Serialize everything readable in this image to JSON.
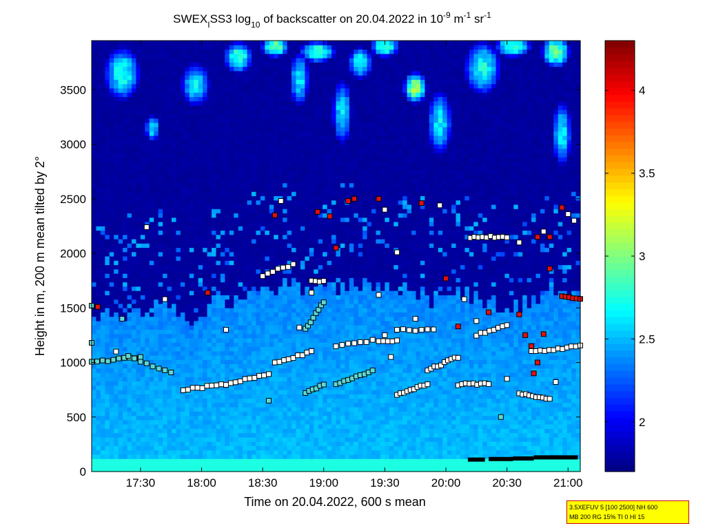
{
  "title": {
    "part1": "SWEX",
    "sub1": "I",
    "part2": "SS3 log",
    "sub2": "10",
    "part3": " of backscatter on 20.04.2022 in 10",
    "sup1": "-9",
    "part4": " m",
    "sup2": "-1",
    "part5": " sr",
    "sup3": "-1"
  },
  "info_box": {
    "line1": "3.5XEFUV 5 [100 2500] NH 600",
    "line2": "MB 200 RG 15% TI 0 HI 15"
  },
  "colors": {
    "background_field": "#0a1f9e",
    "boundary_layer": "#1496e0",
    "surface": "#19e3e8",
    "cloud_high": "#e6f53c",
    "marker_white": "#ffffff",
    "marker_cyan": "#5fd7d2",
    "marker_red": "#e01010"
  },
  "chart_data": {
    "type": "heatmap",
    "xlabel": "Time on 20.04.2022, 600 s mean",
    "ylabel": "Height in m, 200 m mean tilted by 2°",
    "xlim": [
      17.1,
      21.1
    ],
    "ylim": [
      0,
      3950
    ],
    "x_ticks": [
      {
        "value": 17.5,
        "label": "17:30"
      },
      {
        "value": 18.0,
        "label": "18:00"
      },
      {
        "value": 18.5,
        "label": "18:30"
      },
      {
        "value": 19.0,
        "label": "19:00"
      },
      {
        "value": 19.5,
        "label": "19:30"
      },
      {
        "value": 20.0,
        "label": "20:00"
      },
      {
        "value": 20.5,
        "label": "20:30"
      },
      {
        "value": 21.0,
        "label": "21:00"
      }
    ],
    "y_ticks": [
      {
        "value": 0,
        "label": "0"
      },
      {
        "value": 500,
        "label": "500"
      },
      {
        "value": 1000,
        "label": "1000"
      },
      {
        "value": 1500,
        "label": "1500"
      },
      {
        "value": 2000,
        "label": "2000"
      },
      {
        "value": 2500,
        "label": "2500"
      },
      {
        "value": 3000,
        "label": "3000"
      },
      {
        "value": 3500,
        "label": "3500"
      }
    ],
    "colorbar": {
      "range": [
        1.7,
        4.3
      ],
      "ticks": [
        {
          "value": 2.0,
          "label": "2"
        },
        {
          "value": 2.5,
          "label": "2.5"
        },
        {
          "value": 3.0,
          "label": "3"
        },
        {
          "value": 3.5,
          "label": "3.5"
        },
        {
          "value": 4.0,
          "label": "4"
        }
      ]
    },
    "layer_top_m": [
      [
        17.1,
        1500
      ],
      [
        17.3,
        1400
      ],
      [
        17.5,
        1450
      ],
      [
        17.7,
        1550
      ],
      [
        17.9,
        1300
      ],
      [
        18.1,
        1600
      ],
      [
        18.3,
        1550
      ],
      [
        18.5,
        1650
      ],
      [
        18.7,
        1700
      ],
      [
        18.9,
        1700
      ],
      [
        19.1,
        1650
      ],
      [
        19.3,
        1750
      ],
      [
        19.5,
        1650
      ],
      [
        19.7,
        1700
      ],
      [
        19.9,
        1550
      ],
      [
        20.1,
        1650
      ],
      [
        20.3,
        1600
      ],
      [
        20.5,
        1500
      ],
      [
        20.7,
        1550
      ],
      [
        20.9,
        1650
      ],
      [
        21.1,
        1600
      ]
    ],
    "cloud_patches": [
      {
        "t": 17.35,
        "h": 3650,
        "rt": 0.15,
        "rh": 250,
        "v": 2.9
      },
      {
        "t": 17.6,
        "h": 3150,
        "rt": 0.06,
        "rh": 120,
        "v": 2.8
      },
      {
        "t": 17.95,
        "h": 3550,
        "rt": 0.12,
        "rh": 200,
        "v": 2.8
      },
      {
        "t": 18.3,
        "h": 3800,
        "rt": 0.12,
        "rh": 150,
        "v": 3.0
      },
      {
        "t": 18.6,
        "h": 3900,
        "rt": 0.12,
        "rh": 100,
        "v": 3.2
      },
      {
        "t": 18.8,
        "h": 3600,
        "rt": 0.08,
        "rh": 250,
        "v": 2.8
      },
      {
        "t": 18.95,
        "h": 3850,
        "rt": 0.15,
        "rh": 100,
        "v": 3.1
      },
      {
        "t": 19.15,
        "h": 3300,
        "rt": 0.08,
        "rh": 300,
        "v": 2.8
      },
      {
        "t": 19.3,
        "h": 3750,
        "rt": 0.1,
        "rh": 150,
        "v": 2.9
      },
      {
        "t": 19.5,
        "h": 3900,
        "rt": 0.12,
        "rh": 100,
        "v": 3.1
      },
      {
        "t": 19.75,
        "h": 3520,
        "rt": 0.1,
        "rh": 150,
        "v": 3.3
      },
      {
        "t": 19.95,
        "h": 3200,
        "rt": 0.1,
        "rh": 300,
        "v": 2.8
      },
      {
        "t": 20.3,
        "h": 3700,
        "rt": 0.15,
        "rh": 250,
        "v": 2.9
      },
      {
        "t": 20.55,
        "h": 3900,
        "rt": 0.15,
        "rh": 100,
        "v": 3.1
      },
      {
        "t": 20.9,
        "h": 3850,
        "rt": 0.12,
        "rh": 150,
        "v": 3.2
      },
      {
        "t": 20.95,
        "h": 3100,
        "rt": 0.08,
        "rh": 300,
        "v": 2.8
      }
    ],
    "marker_traces": [
      {
        "t0": 17.1,
        "h0": 1000,
        "t1": 17.5,
        "h1": 1050,
        "n": 10,
        "color": "cyan"
      },
      {
        "t0": 17.4,
        "h0": 1050,
        "t1": 17.75,
        "h1": 900,
        "n": 8,
        "color": "cyan"
      },
      {
        "t0": 17.85,
        "h0": 750,
        "t1": 18.2,
        "h1": 800,
        "n": 10,
        "color": "white"
      },
      {
        "t0": 18.2,
        "h0": 800,
        "t1": 18.55,
        "h1": 900,
        "n": 10,
        "color": "white"
      },
      {
        "t0": 18.6,
        "h0": 1000,
        "t1": 18.9,
        "h1": 1100,
        "n": 9,
        "color": "white"
      },
      {
        "t0": 18.85,
        "h0": 720,
        "t1": 19.0,
        "h1": 800,
        "n": 6,
        "color": "cyan"
      },
      {
        "t0": 19.1,
        "h0": 800,
        "t1": 19.4,
        "h1": 920,
        "n": 10,
        "color": "cyan"
      },
      {
        "t0": 19.1,
        "h0": 1150,
        "t1": 19.4,
        "h1": 1200,
        "n": 7,
        "color": "white"
      },
      {
        "t0": 19.45,
        "h0": 1200,
        "t1": 19.6,
        "h1": 1200,
        "n": 5,
        "color": "white"
      },
      {
        "t0": 19.6,
        "h0": 700,
        "t1": 19.85,
        "h1": 800,
        "n": 10,
        "color": "white"
      },
      {
        "t0": 19.85,
        "h0": 930,
        "t1": 20.1,
        "h1": 1050,
        "n": 10,
        "color": "white"
      },
      {
        "t0": 20.1,
        "h0": 800,
        "t1": 20.35,
        "h1": 800,
        "n": 9,
        "color": "white"
      },
      {
        "t0": 20.25,
        "h0": 1250,
        "t1": 20.5,
        "h1": 1350,
        "n": 8,
        "color": "white"
      },
      {
        "t0": 20.6,
        "h0": 720,
        "t1": 20.85,
        "h1": 660,
        "n": 10,
        "color": "white"
      },
      {
        "t0": 20.7,
        "h0": 1100,
        "t1": 21.1,
        "h1": 1150,
        "n": 12,
        "color": "white"
      },
      {
        "t0": 20.2,
        "h0": 2150,
        "t1": 20.5,
        "h1": 2150,
        "n": 10,
        "color": "white"
      },
      {
        "t0": 18.85,
        "h0": 1300,
        "t1": 19.0,
        "h1": 1550,
        "n": 8,
        "color": "cyan"
      },
      {
        "t0": 18.5,
        "h0": 1800,
        "t1": 18.75,
        "h1": 1900,
        "n": 7,
        "color": "white"
      },
      {
        "t0": 18.9,
        "h0": 1750,
        "t1": 19.0,
        "h1": 1750,
        "n": 4,
        "color": "white"
      },
      {
        "t0": 19.6,
        "h0": 1300,
        "t1": 19.9,
        "h1": 1300,
        "n": 7,
        "color": "white"
      },
      {
        "t0": 20.95,
        "h0": 1600,
        "t1": 21.1,
        "h1": 1580,
        "n": 6,
        "color": "red"
      }
    ],
    "markers": [
      {
        "t": 17.1,
        "h": 1520,
        "color": "cyan"
      },
      {
        "t": 17.15,
        "h": 1510,
        "color": "red"
      },
      {
        "t": 17.55,
        "h": 2240,
        "color": "white"
      },
      {
        "t": 17.7,
        "h": 1580,
        "color": "white"
      },
      {
        "t": 18.05,
        "h": 1640,
        "color": "red"
      },
      {
        "t": 18.65,
        "h": 2480,
        "color": "white"
      },
      {
        "t": 18.6,
        "h": 2350,
        "color": "red"
      },
      {
        "t": 18.95,
        "h": 2380,
        "color": "red"
      },
      {
        "t": 19.05,
        "h": 2340,
        "color": "red"
      },
      {
        "t": 19.2,
        "h": 2480,
        "color": "red"
      },
      {
        "t": 19.25,
        "h": 2500,
        "color": "red"
      },
      {
        "t": 19.45,
        "h": 2500,
        "color": "red"
      },
      {
        "t": 19.5,
        "h": 2400,
        "color": "white"
      },
      {
        "t": 19.8,
        "h": 2460,
        "color": "red"
      },
      {
        "t": 19.95,
        "h": 2440,
        "color": "white"
      },
      {
        "t": 20.75,
        "h": 2150,
        "color": "red"
      },
      {
        "t": 20.85,
        "h": 2150,
        "color": "red"
      },
      {
        "t": 20.8,
        "h": 2200,
        "color": "white"
      },
      {
        "t": 20.95,
        "h": 2420,
        "color": "red"
      },
      {
        "t": 21.0,
        "h": 2360,
        "color": "white"
      },
      {
        "t": 21.05,
        "h": 2300,
        "color": "white"
      },
      {
        "t": 20.85,
        "h": 1860,
        "color": "red"
      },
      {
        "t": 20.0,
        "h": 1770,
        "color": "red"
      },
      {
        "t": 20.1,
        "h": 1330,
        "color": "red"
      },
      {
        "t": 20.6,
        "h": 1440,
        "color": "red"
      },
      {
        "t": 20.65,
        "h": 1250,
        "color": "red"
      },
      {
        "t": 20.7,
        "h": 1150,
        "color": "red"
      },
      {
        "t": 20.75,
        "h": 1000,
        "color": "red"
      },
      {
        "t": 20.72,
        "h": 900,
        "color": "red"
      },
      {
        "t": 20.8,
        "h": 1260,
        "color": "red"
      },
      {
        "t": 20.35,
        "h": 1460,
        "color": "red"
      },
      {
        "t": 20.25,
        "h": 1380,
        "color": "white"
      },
      {
        "t": 19.5,
        "h": 1250,
        "color": "white"
      },
      {
        "t": 19.55,
        "h": 1050,
        "color": "white"
      },
      {
        "t": 18.55,
        "h": 650,
        "color": "cyan"
      },
      {
        "t": 17.35,
        "h": 1400,
        "color": "cyan"
      },
      {
        "t": 17.1,
        "h": 1180,
        "color": "cyan"
      },
      {
        "t": 20.45,
        "h": 500,
        "color": "cyan"
      },
      {
        "t": 20.9,
        "h": 820,
        "color": "white"
      },
      {
        "t": 20.5,
        "h": 850,
        "color": "white"
      },
      {
        "t": 19.75,
        "h": 1400,
        "color": "white"
      },
      {
        "t": 18.2,
        "h": 1300,
        "color": "white"
      },
      {
        "t": 20.15,
        "h": 1580,
        "color": "white"
      },
      {
        "t": 19.6,
        "h": 2010,
        "color": "white"
      },
      {
        "t": 19.1,
        "h": 2050,
        "color": "red"
      },
      {
        "t": 20.6,
        "h": 2100,
        "color": "white"
      },
      {
        "t": 18.9,
        "h": 1640,
        "color": "white"
      },
      {
        "t": 19.45,
        "h": 1620,
        "color": "white"
      },
      {
        "t": 18.8,
        "h": 1320,
        "color": "white"
      },
      {
        "t": 17.3,
        "h": 1100,
        "color": "white"
      }
    ],
    "surface_segments": [
      {
        "t0": 20.18,
        "t1": 20.32,
        "h": 110
      },
      {
        "t0": 20.35,
        "t1": 20.55,
        "h": 115
      },
      {
        "t0": 20.55,
        "t1": 20.72,
        "h": 120
      },
      {
        "t0": 20.72,
        "t1": 21.08,
        "h": 130
      }
    ]
  }
}
